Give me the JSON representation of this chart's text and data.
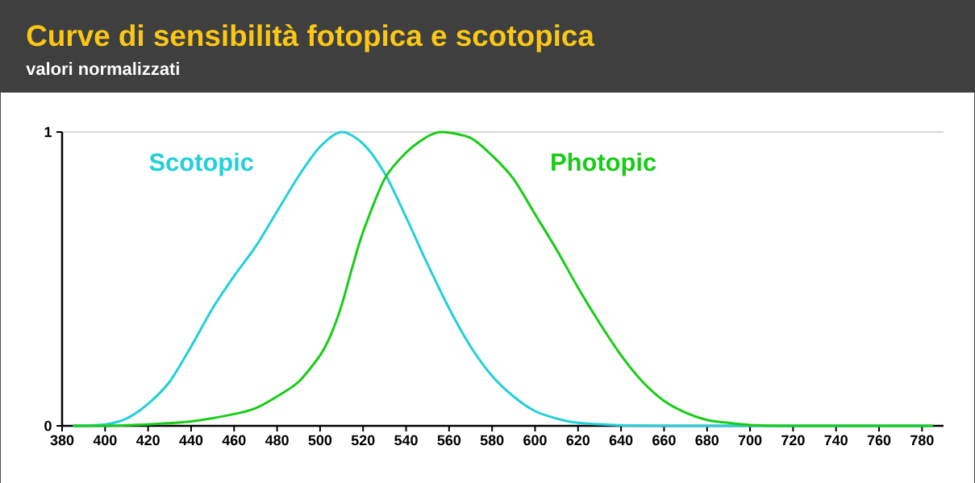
{
  "chart_data": {
    "type": "line",
    "title": "Curve di sensibilità fotopica e scotopica",
    "subtitle": "valori normalizzati",
    "xlim": [
      380,
      790
    ],
    "xticks": [
      380,
      400,
      420,
      440,
      460,
      480,
      500,
      520,
      540,
      560,
      580,
      600,
      620,
      640,
      660,
      680,
      700,
      720,
      740,
      760,
      780
    ],
    "ylim": [
      0,
      1
    ],
    "yticks": [
      0,
      1
    ],
    "grid": "y",
    "series": [
      {
        "name": "Scotopic",
        "color": "#22d0d8",
        "x": [
          385,
          400,
          410,
          420,
          430,
          440,
          450,
          460,
          470,
          480,
          490,
          500,
          510,
          520,
          530,
          540,
          550,
          560,
          570,
          580,
          590,
          600,
          610,
          620,
          640,
          660,
          700,
          750,
          785
        ],
        "values": [
          0,
          0.005,
          0.025,
          0.075,
          0.15,
          0.27,
          0.4,
          0.51,
          0.61,
          0.73,
          0.85,
          0.95,
          1.0,
          0.96,
          0.86,
          0.71,
          0.55,
          0.4,
          0.27,
          0.17,
          0.1,
          0.05,
          0.025,
          0.01,
          0.002,
          0,
          0,
          0,
          0
        ]
      },
      {
        "name": "Photopic",
        "color": "#18cc18",
        "x": [
          385,
          400,
          420,
          440,
          460,
          470,
          480,
          490,
          500,
          505,
          510,
          515,
          520,
          530,
          540,
          550,
          557,
          570,
          580,
          590,
          600,
          610,
          620,
          630,
          640,
          650,
          660,
          670,
          680,
          690,
          700,
          720,
          750,
          785
        ],
        "values": [
          0,
          0,
          0.005,
          0.015,
          0.04,
          0.06,
          0.1,
          0.15,
          0.24,
          0.31,
          0.41,
          0.54,
          0.66,
          0.84,
          0.93,
          0.985,
          1.0,
          0.98,
          0.92,
          0.84,
          0.72,
          0.6,
          0.47,
          0.35,
          0.24,
          0.15,
          0.085,
          0.045,
          0.02,
          0.01,
          0.003,
          0,
          0,
          0
        ]
      }
    ]
  }
}
